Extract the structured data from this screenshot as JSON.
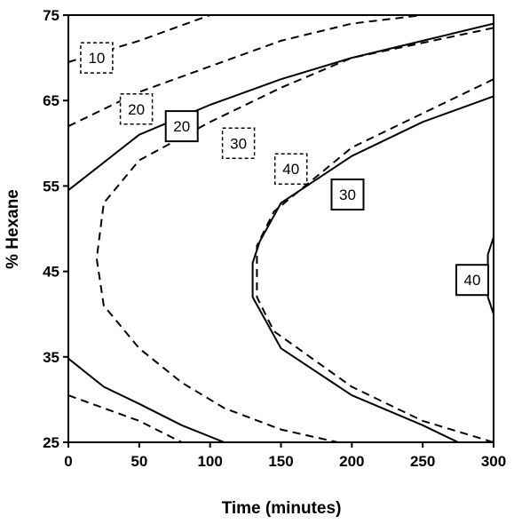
{
  "chart_data": {
    "type": "contour",
    "xlabel": "Time (minutes)",
    "ylabel": "% Hexane",
    "xlim": [
      0,
      300
    ],
    "ylim": [
      25,
      75
    ],
    "xticks": [
      "0",
      "50",
      "100",
      "150",
      "200",
      "250",
      "300"
    ],
    "yticks": [
      "25",
      "35",
      "45",
      "55",
      "65",
      "75"
    ],
    "series": [
      {
        "style": "solid",
        "contours": [
          {
            "level": "20",
            "upper": [
              [
                0,
                54.5
              ],
              [
                50,
                61
              ],
              [
                100,
                64.5
              ],
              [
                150,
                67.5
              ],
              [
                200,
                70
              ],
              [
                250,
                72
              ],
              [
                300,
                74
              ]
            ],
            "lower": [
              [
                0,
                34.8
              ],
              [
                25,
                31.5
              ],
              [
                50,
                29.5
              ],
              [
                80,
                27
              ],
              [
                110,
                25
              ]
            ]
          },
          {
            "level": "30",
            "vertex": [
              130,
              45
            ],
            "upper": [
              [
                130,
                46
              ],
              [
                135,
                48.5
              ],
              [
                150,
                53
              ],
              [
                200,
                58.5
              ],
              [
                250,
                62.5
              ],
              [
                300,
                65.5
              ]
            ],
            "lower": [
              [
                130,
                42
              ],
              [
                150,
                36
              ],
              [
                200,
                30.5
              ],
              [
                250,
                27
              ],
              [
                275,
                25
              ]
            ]
          },
          {
            "level": "40",
            "vertex": [
              300,
              45
            ],
            "points": [
              [
                300,
                40
              ],
              [
                296,
                42
              ],
              [
                296,
                47
              ],
              [
                300,
                49
              ]
            ]
          }
        ],
        "labels": [
          {
            "text": "20",
            "x": 80,
            "y": 62
          },
          {
            "text": "30",
            "x": 197,
            "y": 54
          },
          {
            "text": "40",
            "x": 285,
            "y": 44
          }
        ]
      },
      {
        "style": "dashed",
        "contours": [
          {
            "level": "10",
            "upper": [
              [
                0,
                69.5
              ],
              [
                50,
                72
              ],
              [
                100,
                75
              ]
            ]
          },
          {
            "level": "20",
            "upper": [
              [
                0,
                62
              ],
              [
                50,
                66
              ],
              [
                100,
                69
              ],
              [
                150,
                72
              ],
              [
                200,
                74
              ],
              [
                250,
                75
              ]
            ],
            "lower": [
              [
                0,
                30.5
              ],
              [
                50,
                27.5
              ],
              [
                80,
                25
              ]
            ]
          },
          {
            "level": "30",
            "vertex": [
              20,
              46.5
            ],
            "upper": [
              [
                25,
                53
              ],
              [
                50,
                58
              ],
              [
                100,
                62.5
              ],
              [
                150,
                66.5
              ],
              [
                200,
                70
              ],
              [
                300,
                73.5
              ]
            ],
            "lower": [
              [
                25,
                41
              ],
              [
                50,
                36
              ],
              [
                80,
                32
              ],
              [
                110,
                29
              ],
              [
                150,
                26.5
              ],
              [
                190,
                25
              ]
            ]
          },
          {
            "level": "40",
            "vertex": [
              133,
              45
            ],
            "upper": [
              [
                133,
                48
              ],
              [
                145,
                52
              ],
              [
                200,
                59.5
              ],
              [
                250,
                63.5
              ],
              [
                300,
                67.5
              ]
            ],
            "lower": [
              [
                133,
                42
              ],
              [
                145,
                38
              ],
              [
                200,
                31.5
              ],
              [
                250,
                27.5
              ],
              [
                300,
                25
              ]
            ]
          }
        ],
        "labels": [
          {
            "text": "10",
            "x": 20,
            "y": 70
          },
          {
            "text": "20",
            "x": 48,
            "y": 64
          },
          {
            "text": "30",
            "x": 120,
            "y": 60
          },
          {
            "text": "40",
            "x": 157,
            "y": 57
          }
        ]
      }
    ]
  }
}
